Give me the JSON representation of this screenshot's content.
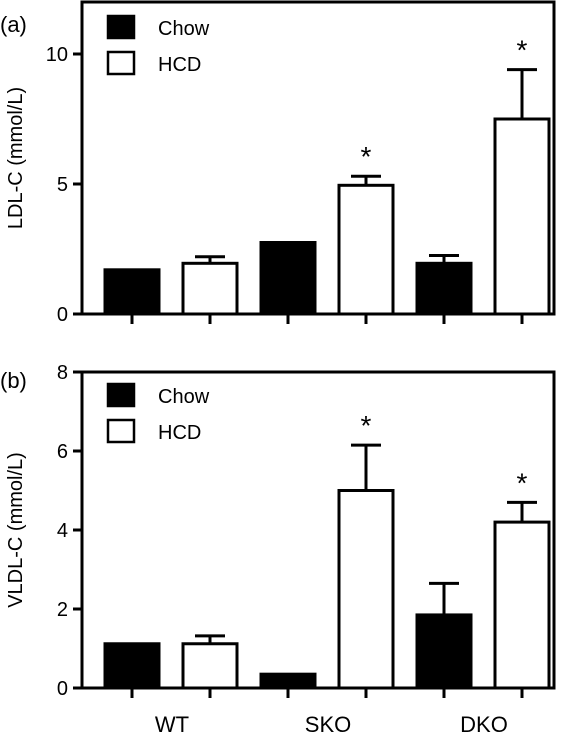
{
  "chart_data": [
    {
      "type": "bar",
      "panel_label": "(a)",
      "ylabel": "LDL-C (mmol/L)",
      "ylim": [
        0,
        12
      ],
      "yticks": [
        0,
        5,
        10
      ],
      "categories": [
        "WT",
        "SKO",
        "DKO"
      ],
      "series": [
        {
          "name": "Chow",
          "color": "#000000",
          "values": [
            1.7,
            2.75,
            1.95
          ],
          "errors": [
            0.05,
            0.05,
            0.3
          ]
        },
        {
          "name": "HCD",
          "color": "#ffffff",
          "values": [
            1.95,
            4.95,
            7.5
          ],
          "errors": [
            0.25,
            0.35,
            1.9
          ]
        }
      ],
      "significance": [
        {
          "series": 1,
          "category": 1,
          "label": "*"
        },
        {
          "series": 1,
          "category": 2,
          "label": "*"
        }
      ],
      "legend_position": "top-left",
      "show_xticklabels": false
    },
    {
      "type": "bar",
      "panel_label": "(b)",
      "ylabel": "VLDL-C (mmol/L)",
      "ylim": [
        0,
        8
      ],
      "yticks": [
        0,
        2,
        4,
        6,
        8
      ],
      "categories": [
        "WT",
        "SKO",
        "DKO"
      ],
      "series": [
        {
          "name": "Chow",
          "color": "#000000",
          "values": [
            1.12,
            0.35,
            1.85
          ],
          "errors": [
            0.03,
            0.02,
            0.8
          ]
        },
        {
          "name": "HCD",
          "color": "#ffffff",
          "values": [
            1.12,
            5.0,
            4.2
          ],
          "errors": [
            0.2,
            1.15,
            0.5
          ]
        }
      ],
      "significance": [
        {
          "series": 1,
          "category": 1,
          "label": "*"
        },
        {
          "series": 1,
          "category": 2,
          "label": "*"
        }
      ],
      "legend_position": "top-left",
      "show_xticklabels": true
    }
  ]
}
